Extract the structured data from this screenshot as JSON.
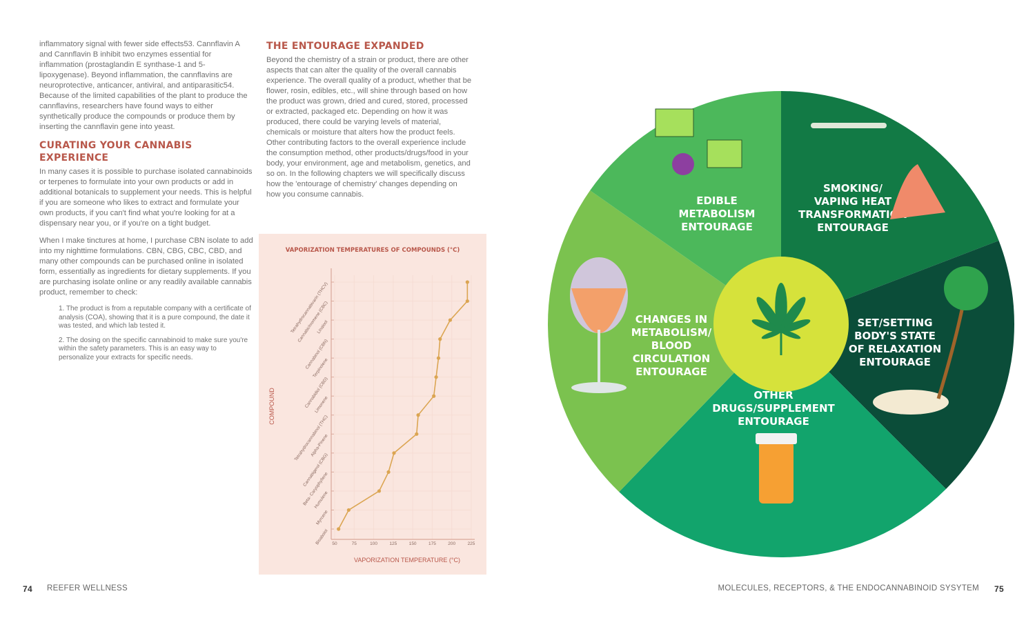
{
  "left_column": {
    "intro": "inflammatory signal with fewer side effects53. Cannflavin A and Cannflavin B inhibit two enzymes essential for inflammation (prostaglandin E synthase-1 and 5-lipoxygenase). Beyond inflammation, the cannflavins are neuroprotective, anticancer, antiviral, and antiparasitic54. Because of the limited capabilities of the plant to produce the cannflavins, researchers have found ways to either synthetically produce the compounds or produce them by inserting the cannflavin gene into yeast.",
    "heading": "CURATING YOUR CANNABIS EXPERIENCE",
    "para1": "In many cases it is possible to purchase isolated cannabinoids or terpenes to formulate into your own products or add in additional botanicals to supplement your needs. This is helpful if you are someone who likes to extract and formulate your own products, if you can't find what you're looking for at a dispensary near you, or if you're on a tight budget.",
    "para2": "When I make tinctures at home, I purchase CBN isolate to add into my nighttime formulations. CBN, CBG, CBC, CBD, and many other compounds can be purchased online in isolated form, essentially as ingredients for dietary supplements. If you are purchasing isolate online or any readily available cannabis product, remember to check:",
    "list": [
      "1. The product is from a reputable company with a certificate of analysis (COA), showing that it is a pure compound, the date it was tested, and which lab tested it.",
      "2. The dosing on the specific cannabinoid to make sure you're within the safety parameters. This is an easy way to personalize your extracts for specific needs."
    ]
  },
  "middle_column": {
    "heading": "THE ENTOURAGE EXPANDED",
    "para": "Beyond the chemistry of a strain or product, there are other aspects that can alter the quality of the overall cannabis experience. The overall quality of a product, whether that be flower, rosin, edibles, etc., will shine through based on how the product was grown, dried and cured, stored, processed or extracted, packaged etc. Depending on how it was produced, there could be varying levels of material, chemicals or moisture that alters how the product feels. Other contributing factors to the overall experience include the consumption method, other products/drugs/food in your body, your environment, age and metabolism, genetics, and so on.  In the following chapters we will specifically discuss how the 'entourage of chemistry' changes depending on how you consume cannabis."
  },
  "chart_data": {
    "type": "line",
    "title": "VAPORIZATION TEMPERATURES OF COMPOUNDS (°C)",
    "xlabel": "VAPORIZATION TEMPERATURE (°C)",
    "ylabel": "COMPOUND",
    "xlim": [
      50,
      225
    ],
    "xticks": [
      "50",
      "75",
      "100",
      "125",
      "150",
      "175",
      "200",
      "225"
    ],
    "categories": [
      "Bisabolol",
      "Myrcene",
      "Humulene",
      "Beta- Caryophyllene",
      "Cannabigerol (CBG)",
      "Alpha-Pinene",
      "Tetrahydrocannabinol (THC)",
      "Limonene",
      "Cannabidiol (CBD)",
      "Terpinolene",
      "Cannabinol (CBN)",
      "Linalool",
      "Cannabichromene (CBC)",
      "Tetrahydrocannabivarin (THCV)"
    ],
    "values": [
      55,
      68,
      107,
      119,
      126,
      155,
      157,
      177,
      180,
      183,
      185,
      198,
      220,
      220
    ],
    "grid": true,
    "color": "#dba552"
  },
  "wheel": {
    "segments": [
      {
        "label": [
          "SMOKING/",
          "VAPING HEAT",
          "TRANSFORMATION",
          "ENTOURAGE"
        ],
        "color": "#127a45"
      },
      {
        "label": [
          "SET/SETTING",
          "BODY'S STATE",
          "OF RELAXATION",
          "ENTOURAGE"
        ],
        "color": "#0b4d39"
      },
      {
        "label": [
          "OTHER",
          "DRUGS/SUPPLEMENT",
          "ENTOURAGE"
        ],
        "color": "#12a46c"
      },
      {
        "label": [
          "CHANGES IN",
          "METABOLISM/",
          "BLOOD",
          "CIRCULATION",
          "ENTOURAGE"
        ],
        "color": "#7bc24f"
      },
      {
        "label": [
          "EDIBLE",
          "METABOLISM",
          "ENTOURAGE"
        ],
        "color": "#4cb85b"
      }
    ],
    "center_color": "#d6e23b"
  },
  "footer": {
    "left_page": "74",
    "left_title": "REEFER WELLNESS",
    "right_title": "MOLECULES, RECEPTORS, & THE ENDOCANNABINOID SYSYTEM",
    "right_page": "75"
  }
}
